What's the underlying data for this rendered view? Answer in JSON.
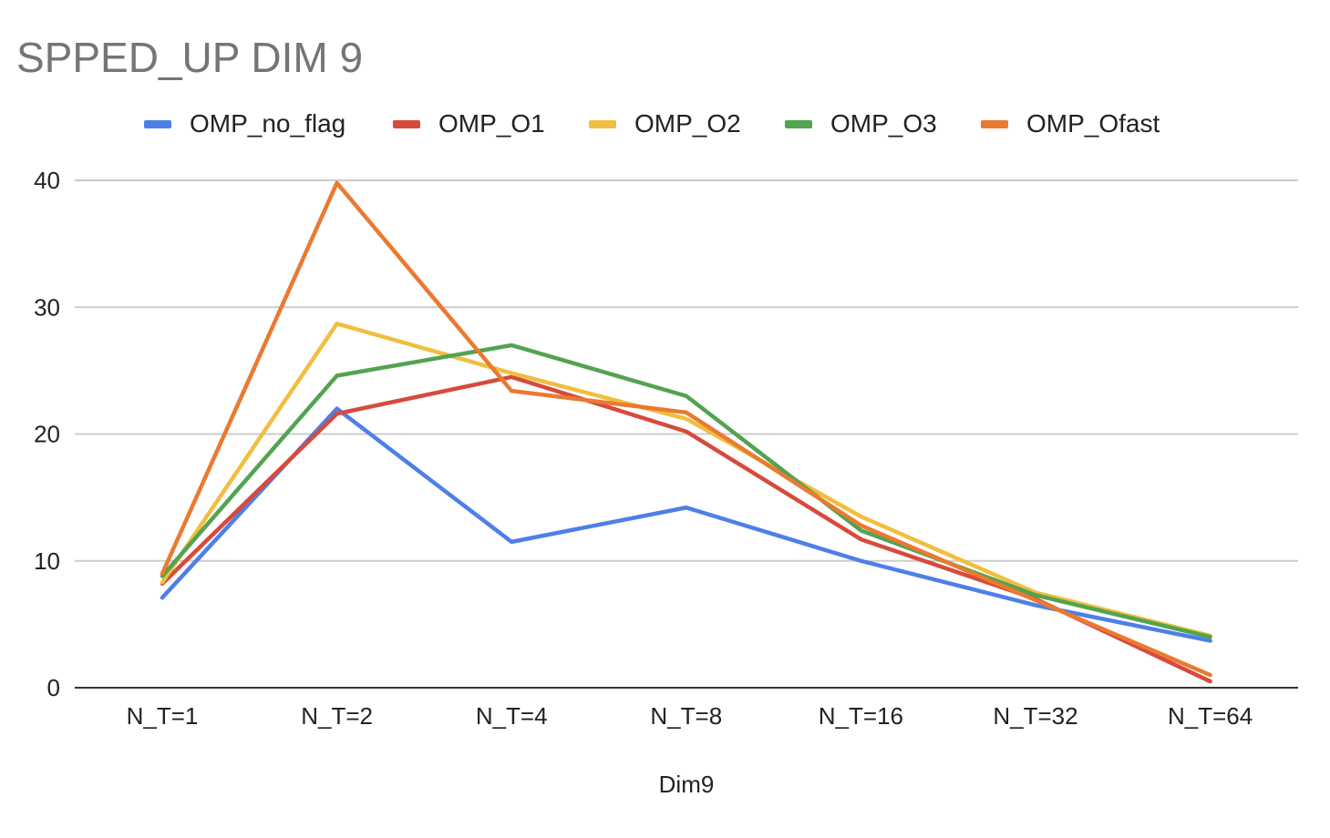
{
  "chart_data": {
    "type": "line",
    "title": "SPPED_UP DIM 9",
    "xlabel": "Dim9",
    "ylabel": "",
    "ylim": [
      0,
      40
    ],
    "yticks": [
      0,
      10,
      20,
      30,
      40
    ],
    "grid": true,
    "legend_position": "top",
    "categories": [
      "N_T=1",
      "N_T=2",
      "N_T=4",
      "N_T=8",
      "N_T=16",
      "N_T=32",
      "N_T=64"
    ],
    "series": [
      {
        "name": "OMP_no_flag",
        "color": "#4e7fe8",
        "values": [
          7.1,
          22.0,
          11.5,
          14.2,
          10.0,
          6.5,
          3.7
        ]
      },
      {
        "name": "OMP_O1",
        "color": "#d74a3c",
        "values": [
          8.2,
          21.6,
          24.5,
          20.2,
          11.7,
          7.0,
          0.5
        ]
      },
      {
        "name": "OMP_O2",
        "color": "#f1be3f",
        "values": [
          8.3,
          28.7,
          24.8,
          21.2,
          13.5,
          7.5,
          4.1
        ]
      },
      {
        "name": "OMP_O3",
        "color": "#53a351",
        "values": [
          8.8,
          24.6,
          27.0,
          23.0,
          12.4,
          7.3,
          4.0
        ]
      },
      {
        "name": "OMP_Ofast",
        "color": "#ea7a31",
        "values": [
          9.0,
          39.8,
          23.4,
          21.7,
          12.8,
          6.9,
          1.0
        ]
      }
    ]
  }
}
